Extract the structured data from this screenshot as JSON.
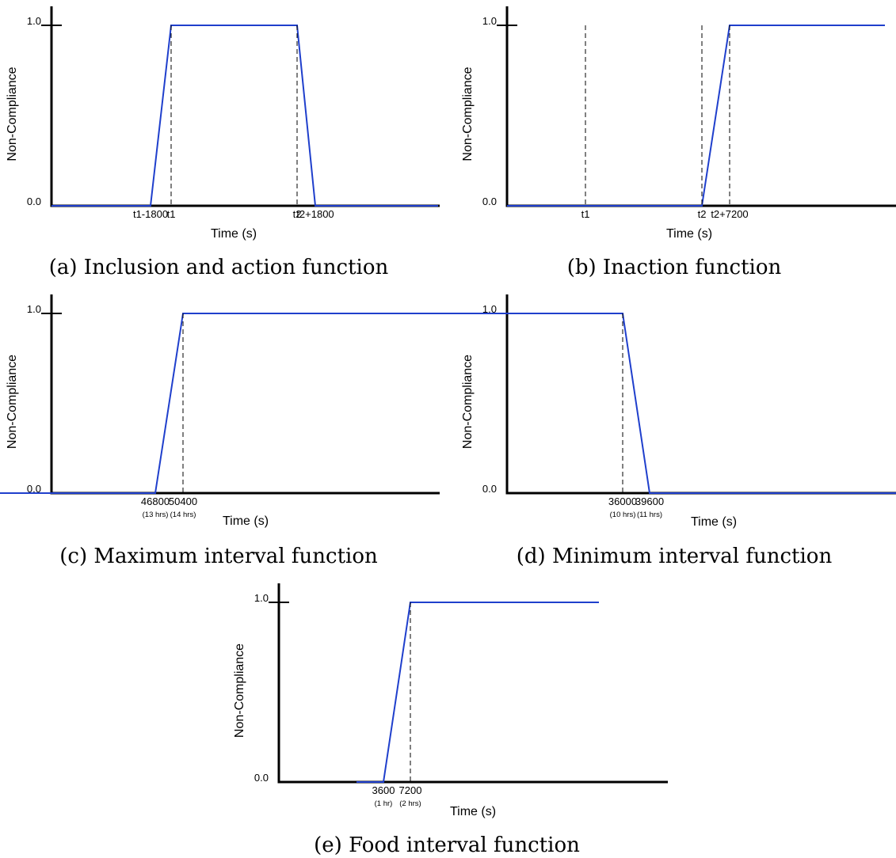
{
  "chart_data": [
    {
      "type": "line",
      "caption": "(a) Inclusion and action function",
      "xlabel": "Time (s)",
      "ylabel": "Non-Compliance",
      "yticks": [
        "0.0",
        "1.0"
      ],
      "xticks": [
        {
          "label": "t1-1800",
          "sub": ""
        },
        {
          "label": "t1",
          "sub": ""
        },
        {
          "label": "t2",
          "sub": ""
        },
        {
          "label": "t2+1800",
          "sub": ""
        }
      ],
      "series": [
        {
          "points": [
            [
              "start",
              0
            ],
            [
              "t1-1800",
              0
            ],
            [
              "t1",
              1
            ],
            [
              "t2",
              1
            ],
            [
              "t2+1800",
              0
            ],
            [
              "end",
              0
            ]
          ]
        }
      ],
      "color": "#1f3fcc"
    },
    {
      "type": "line",
      "caption": "(b) Inaction function",
      "xlabel": "Time (s)",
      "ylabel": "Non-Compliance",
      "yticks": [
        "0.0",
        "1.0"
      ],
      "xticks": [
        {
          "label": "t1",
          "sub": ""
        },
        {
          "label": "t2",
          "sub": ""
        },
        {
          "label": "t2+7200",
          "sub": ""
        }
      ],
      "series": [
        {
          "points": [
            [
              "start",
              0
            ],
            [
              "t2",
              0
            ],
            [
              "t2+7200",
              1
            ],
            [
              "end",
              1
            ]
          ]
        }
      ],
      "color": "#1f3fcc"
    },
    {
      "type": "line",
      "caption": "(c) Maximum interval function",
      "xlabel": "Time (s)",
      "ylabel": "Non-Compliance",
      "yticks": [
        "0.0",
        "1.0"
      ],
      "xticks": [
        {
          "label": "46800",
          "sub": "(13 hrs)"
        },
        {
          "label": "50400",
          "sub": "(14 hrs)"
        }
      ],
      "series": [
        {
          "points": [
            [
              0,
              0
            ],
            [
              46800,
              0
            ],
            [
              50400,
              1
            ],
            [
              97200,
              1
            ]
          ]
        }
      ],
      "color": "#1f3fcc"
    },
    {
      "type": "line",
      "caption": "(d) Minimum interval function",
      "xlabel": "Time (s)",
      "ylabel": "Non-Compliance",
      "yticks": [
        "0.0",
        "1.0"
      ],
      "xticks": [
        {
          "label": "36000",
          "sub": "(10 hrs)"
        },
        {
          "label": "39600",
          "sub": "(11 hrs)"
        }
      ],
      "series": [
        {
          "points": [
            [
              0,
              1
            ],
            [
              36000,
              1
            ],
            [
              39600,
              0
            ],
            [
              90000,
              0
            ]
          ]
        }
      ],
      "color": "#1f3fcc"
    },
    {
      "type": "line",
      "caption": "(e) Food interval function",
      "xlabel": "Time (s)",
      "ylabel": "Non-Compliance",
      "yticks": [
        "0.0",
        "1.0"
      ],
      "xticks": [
        {
          "label": "3600",
          "sub": "(1 hr)"
        },
        {
          "label": "7200",
          "sub": "(2 hrs)"
        }
      ],
      "series": [
        {
          "points": [
            [
              0,
              0
            ],
            [
              3600,
              0
            ],
            [
              7200,
              1
            ],
            [
              32400,
              1
            ]
          ]
        }
      ],
      "color": "#1f3fcc"
    }
  ]
}
